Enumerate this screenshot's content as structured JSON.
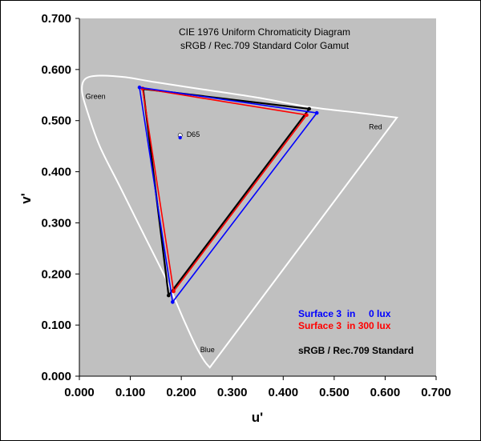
{
  "chart_data": {
    "type": "scatter",
    "title": "CIE 1976 Uniform Chromaticity Diagram",
    "subtitle": "sRGB / Rec.709 Standard Color Gamut",
    "xlabel": "u'",
    "ylabel": "v'",
    "xlim": [
      0.0,
      0.7
    ],
    "ylim": [
      0.0,
      0.7
    ],
    "x_ticks": [
      "0.000",
      "0.100",
      "0.200",
      "0.300",
      "0.400",
      "0.500",
      "0.600",
      "0.700"
    ],
    "y_ticks": [
      "0.000",
      "0.100",
      "0.200",
      "0.300",
      "0.400",
      "0.500",
      "0.600",
      "0.700"
    ],
    "grid": false,
    "plot_background": "#c0c0c0",
    "locus": {
      "color": "#ffffff",
      "points": [
        [
          0.256,
          0.017
        ],
        [
          0.245,
          0.03
        ],
        [
          0.228,
          0.06
        ],
        [
          0.205,
          0.11
        ],
        [
          0.17,
          0.19
        ],
        [
          0.125,
          0.28
        ],
        [
          0.08,
          0.37
        ],
        [
          0.04,
          0.45
        ],
        [
          0.015,
          0.52
        ],
        [
          0.005,
          0.56
        ],
        [
          0.012,
          0.582
        ],
        [
          0.04,
          0.588
        ],
        [
          0.09,
          0.585
        ],
        [
          0.15,
          0.575
        ],
        [
          0.25,
          0.56
        ],
        [
          0.35,
          0.545
        ],
        [
          0.45,
          0.527
        ],
        [
          0.55,
          0.515
        ],
        [
          0.623,
          0.506
        ]
      ],
      "closed": true
    },
    "region_labels": [
      {
        "text": "Green",
        "x": 0.012,
        "y": 0.543
      },
      {
        "text": "Red",
        "x": 0.568,
        "y": 0.483
      },
      {
        "text": "Blue",
        "x": 0.237,
        "y": 0.047
      }
    ],
    "white_point": {
      "label": "D65",
      "x": 0.1978,
      "y": 0.4683
    },
    "series": [
      {
        "name": "Surface 3  in     0 lux",
        "color": "#0000ff",
        "points": [
          [
            0.118,
            0.565
          ],
          [
            0.466,
            0.515
          ],
          [
            0.183,
            0.145
          ]
        ]
      },
      {
        "name": "Surface 3  in 300 lux",
        "color": "#ff0000",
        "points": [
          [
            0.124,
            0.563
          ],
          [
            0.446,
            0.511
          ],
          [
            0.185,
            0.166
          ]
        ]
      },
      {
        "name": "sRGB / Rec.709 Standard",
        "color": "#000000",
        "points": [
          [
            0.125,
            0.562
          ],
          [
            0.451,
            0.523
          ],
          [
            0.175,
            0.158
          ]
        ]
      }
    ]
  }
}
